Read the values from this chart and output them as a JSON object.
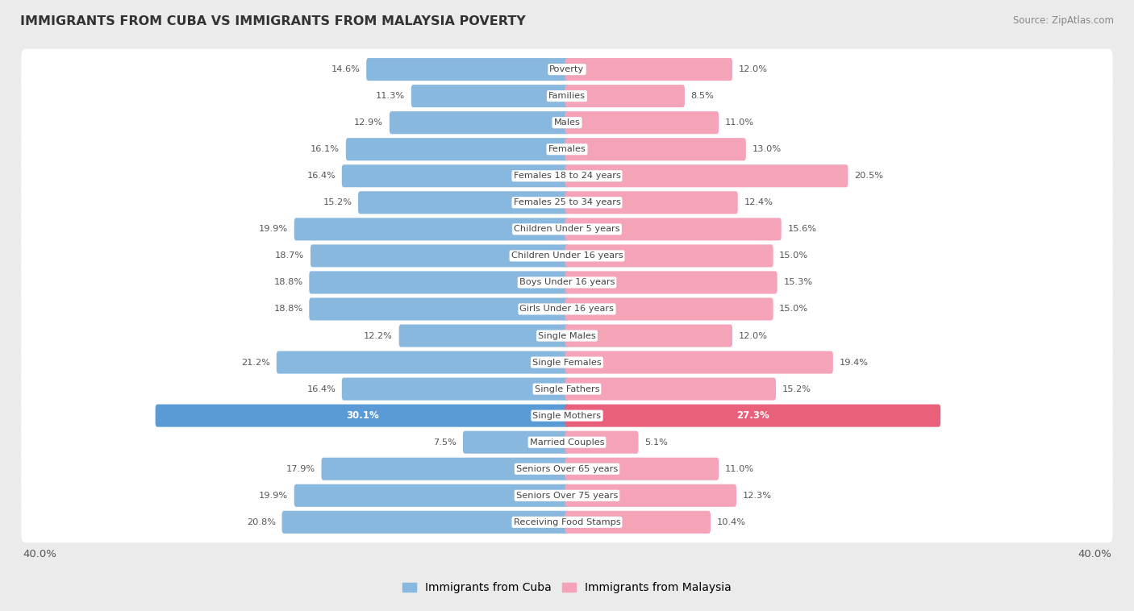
{
  "title": "IMMIGRANTS FROM CUBA VS IMMIGRANTS FROM MALAYSIA POVERTY",
  "source": "Source: ZipAtlas.com",
  "categories": [
    "Poverty",
    "Families",
    "Males",
    "Females",
    "Females 18 to 24 years",
    "Females 25 to 34 years",
    "Children Under 5 years",
    "Children Under 16 years",
    "Boys Under 16 years",
    "Girls Under 16 years",
    "Single Males",
    "Single Females",
    "Single Fathers",
    "Single Mothers",
    "Married Couples",
    "Seniors Over 65 years",
    "Seniors Over 75 years",
    "Receiving Food Stamps"
  ],
  "cuba_values": [
    14.6,
    11.3,
    12.9,
    16.1,
    16.4,
    15.2,
    19.9,
    18.7,
    18.8,
    18.8,
    12.2,
    21.2,
    16.4,
    30.1,
    7.5,
    17.9,
    19.9,
    20.8
  ],
  "malaysia_values": [
    12.0,
    8.5,
    11.0,
    13.0,
    20.5,
    12.4,
    15.6,
    15.0,
    15.3,
    15.0,
    12.0,
    19.4,
    15.2,
    27.3,
    5.1,
    11.0,
    12.3,
    10.4
  ],
  "cuba_color": "#89b8df",
  "malaysia_color": "#f4a3b8",
  "cuba_highlight_color": "#5b9bd5",
  "malaysia_highlight_color": "#e8607a",
  "background_color": "#ebebeb",
  "row_bg_color": "#ffffff",
  "axis_limit": 40.0,
  "legend_cuba": "Immigrants from Cuba",
  "legend_malaysia": "Immigrants from Malaysia",
  "highlight_row": "Single Mothers"
}
